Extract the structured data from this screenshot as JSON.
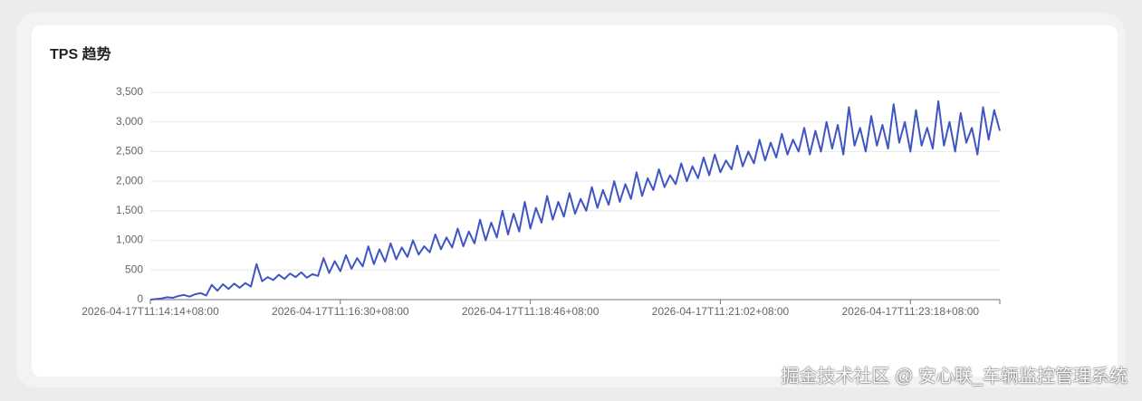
{
  "chart_data": {
    "type": "line",
    "title": "TPS 趋势",
    "categories": [
      "2026-04-17T11:14:14+08:00",
      null,
      null,
      null,
      null,
      null,
      null,
      null,
      null,
      null,
      null,
      null,
      null,
      null,
      null,
      null,
      null,
      null,
      null,
      null,
      null,
      null,
      null,
      null,
      null,
      null,
      null,
      null,
      null,
      null,
      null,
      null,
      null,
      null,
      "2026-04-17T11:16:30+08:00",
      null,
      null,
      null,
      null,
      null,
      null,
      null,
      null,
      null,
      null,
      null,
      null,
      null,
      null,
      null,
      null,
      null,
      null,
      null,
      null,
      null,
      null,
      null,
      null,
      null,
      null,
      null,
      null,
      null,
      null,
      null,
      null,
      null,
      "2026-04-17T11:18:46+08:00",
      null,
      null,
      null,
      null,
      null,
      null,
      null,
      null,
      null,
      null,
      null,
      null,
      null,
      null,
      null,
      null,
      null,
      null,
      null,
      null,
      null,
      null,
      null,
      null,
      null,
      null,
      null,
      null,
      null,
      null,
      null,
      null,
      null,
      "2026-04-17T11:21:02+08:00",
      null,
      null,
      null,
      null,
      null,
      null,
      null,
      null,
      null,
      null,
      null,
      null,
      null,
      null,
      null,
      null,
      null,
      null,
      null,
      null,
      null,
      null,
      null,
      null,
      null,
      null,
      null,
      null,
      null,
      null,
      null,
      null,
      null,
      "2026-04-17T11:23:18+08:00",
      null,
      null,
      null,
      null,
      null,
      null,
      null,
      null,
      null,
      null,
      null,
      null,
      null,
      null,
      null,
      null
    ],
    "values": [
      0,
      10,
      20,
      40,
      30,
      60,
      80,
      50,
      90,
      110,
      70,
      250,
      150,
      260,
      180,
      270,
      200,
      280,
      220,
      600,
      310,
      380,
      330,
      420,
      350,
      440,
      380,
      460,
      370,
      430,
      400,
      700,
      450,
      650,
      480,
      750,
      520,
      700,
      560,
      900,
      600,
      850,
      640,
      950,
      680,
      880,
      720,
      1000,
      760,
      900,
      800,
      1100,
      850,
      1050,
      880,
      1200,
      900,
      1150,
      950,
      1350,
      1000,
      1300,
      1050,
      1500,
      1100,
      1450,
      1150,
      1650,
      1200,
      1550,
      1300,
      1750,
      1350,
      1650,
      1400,
      1800,
      1450,
      1700,
      1500,
      1900,
      1550,
      1850,
      1600,
      2000,
      1650,
      1950,
      1700,
      2150,
      1750,
      2050,
      1850,
      2200,
      1900,
      2100,
      1950,
      2300,
      2000,
      2250,
      2050,
      2400,
      2100,
      2450,
      2150,
      2350,
      2200,
      2600,
      2250,
      2500,
      2300,
      2700,
      2350,
      2650,
      2400,
      2800,
      2450,
      2700,
      2500,
      2900,
      2450,
      2850,
      2500,
      3000,
      2550,
      2950,
      2450,
      3250,
      2600,
      2900,
      2500,
      3100,
      2600,
      2950,
      2550,
      3300,
      2650,
      3000,
      2500,
      3200,
      2600,
      2900,
      2550,
      3350,
      2600,
      3000,
      2500,
      3150,
      2650,
      2900,
      2450,
      3250,
      2700,
      3200,
      2850
    ],
    "color": "#3f56c2",
    "ylim": [
      0,
      3500
    ],
    "yticks": [
      0,
      500,
      {
        "value": 1000,
        "label": "1,000"
      },
      {
        "value": 1500,
        "label": "1,500"
      },
      {
        "value": 2000,
        "label": "2,000"
      },
      {
        "value": 2500,
        "label": "2,500"
      },
      {
        "value": 3000,
        "label": "3,000"
      },
      {
        "value": 3500,
        "label": "3,500"
      }
    ],
    "grid": true
  },
  "watermark": "掘金技术社区 @ 安心联_车辆监控管理系统"
}
